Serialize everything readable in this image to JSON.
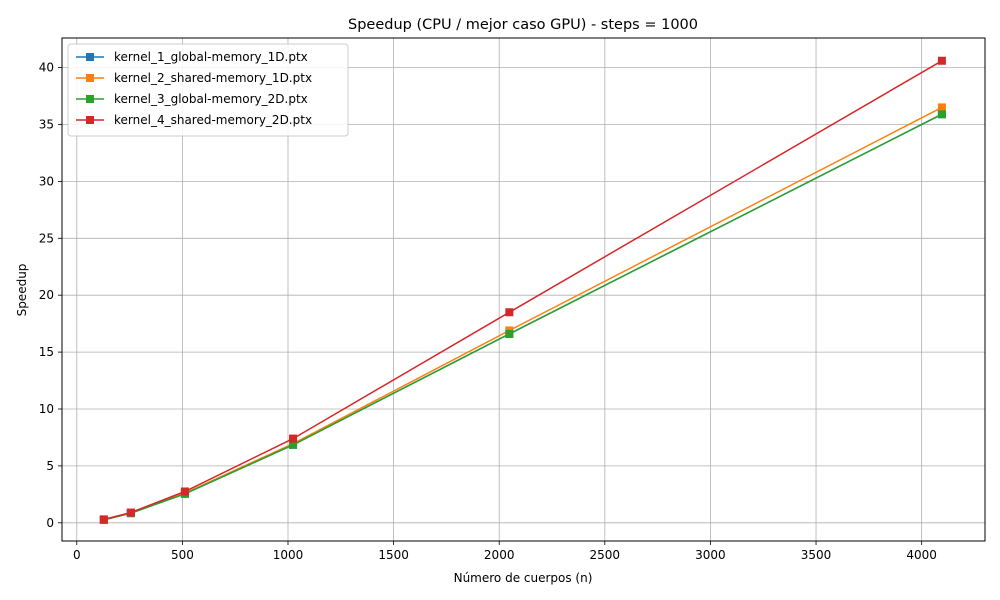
{
  "chart_data": {
    "type": "line",
    "title": "Speedup (CPU / mejor caso GPU) - steps = 1000",
    "xlabel": "Número de cuerpos (n)",
    "ylabel": "Speedup",
    "xlim": [
      -70,
      4300
    ],
    "ylim": [
      -1.6,
      42.6
    ],
    "xticks": [
      0,
      500,
      1000,
      1500,
      2000,
      2500,
      3000,
      3500,
      4000
    ],
    "yticks": [
      0,
      5,
      10,
      15,
      20,
      25,
      30,
      35,
      40
    ],
    "grid": true,
    "legend_position": "top-left",
    "x": [
      128,
      256,
      512,
      1024,
      2048,
      4096
    ],
    "series": [
      {
        "name": "kernel_1_global-memory_1D.ptx",
        "color": "#1f77b4",
        "marker": "square",
        "values": [
          0.25,
          0.85,
          2.55,
          6.85,
          16.6,
          35.9
        ]
      },
      {
        "name": "kernel_2_shared-memory_1D.ptx",
        "color": "#ff7f0e",
        "marker": "square",
        "values": [
          0.25,
          0.85,
          2.6,
          6.95,
          16.9,
          36.5
        ]
      },
      {
        "name": "kernel_3_global-memory_2D.ptx",
        "color": "#2ca02c",
        "marker": "square",
        "values": [
          0.25,
          0.85,
          2.55,
          6.85,
          16.6,
          35.9
        ]
      },
      {
        "name": "kernel_4_shared-memory_2D.ptx",
        "color": "#d62728",
        "marker": "square",
        "values": [
          0.3,
          0.9,
          2.75,
          7.4,
          18.5,
          40.6
        ]
      }
    ]
  }
}
